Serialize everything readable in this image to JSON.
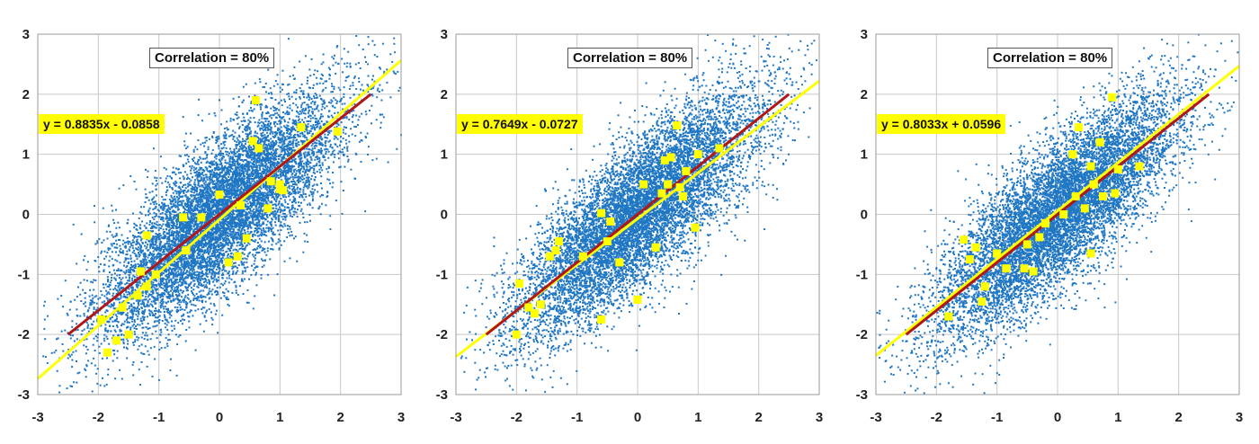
{
  "chart_data": [
    {
      "type": "scatter",
      "annotation": "Correlation = 80%",
      "equation": "y = 0.8835x - 0.0858",
      "xlim": [
        -3,
        3
      ],
      "ylim": [
        -3,
        3
      ],
      "xticks": [
        "-3",
        "-2",
        "-1",
        "0",
        "1",
        "2",
        "3"
      ],
      "yticks": [
        "-3",
        "-2",
        "-1",
        "0",
        "1",
        "2",
        "3"
      ],
      "grid": true,
      "cloud": {
        "n": 9000,
        "correlation": 0.8,
        "color": "#1f77c4"
      },
      "sample": {
        "color": "#ffff00",
        "points": [
          [
            -1.95,
            -1.75
          ],
          [
            -1.85,
            -2.3
          ],
          [
            -1.7,
            -2.1
          ],
          [
            -1.6,
            -1.55
          ],
          [
            -1.5,
            -2.0
          ],
          [
            -1.35,
            -1.35
          ],
          [
            -1.3,
            -0.95
          ],
          [
            -1.2,
            -1.2
          ],
          [
            -1.05,
            -1.0
          ],
          [
            -1.2,
            -0.35
          ],
          [
            -0.6,
            -0.05
          ],
          [
            -0.55,
            -0.6
          ],
          [
            -0.3,
            -0.05
          ],
          [
            0.0,
            0.33
          ],
          [
            0.15,
            -0.8
          ],
          [
            0.3,
            -0.7
          ],
          [
            0.35,
            0.15
          ],
          [
            0.45,
            -0.4
          ],
          [
            0.55,
            1.22
          ],
          [
            0.6,
            1.9
          ],
          [
            0.65,
            1.1
          ],
          [
            0.8,
            0.1
          ],
          [
            0.85,
            0.55
          ],
          [
            1.0,
            0.5
          ],
          [
            1.0,
            0.42
          ],
          [
            1.05,
            0.4
          ],
          [
            1.35,
            1.45
          ],
          [
            1.95,
            1.38
          ]
        ]
      },
      "lines": [
        {
          "slope": 0.8835,
          "intercept": -0.0858,
          "x": [
            -3.0,
            3.0
          ],
          "color": "#ffff00"
        },
        {
          "slope": 0.8,
          "intercept": 0.0,
          "x": [
            -2.5,
            2.5
          ],
          "color": "#b01818"
        }
      ]
    },
    {
      "type": "scatter",
      "annotation": "Correlation = 80%",
      "equation": "y = 0.7649x - 0.0727",
      "xlim": [
        -3,
        3
      ],
      "ylim": [
        -3,
        3
      ],
      "xticks": [
        "-3",
        "-2",
        "-1",
        "0",
        "1",
        "2",
        "3"
      ],
      "yticks": [
        "-3",
        "-2",
        "-1",
        "0",
        "1",
        "2",
        "3"
      ],
      "grid": true,
      "cloud": {
        "n": 9000,
        "correlation": 0.8,
        "color": "#1f77c4"
      },
      "sample": {
        "color": "#ffff00",
        "points": [
          [
            -2.0,
            -2.0
          ],
          [
            -1.95,
            -1.15
          ],
          [
            -1.8,
            -1.55
          ],
          [
            -1.7,
            -1.65
          ],
          [
            -1.6,
            -1.5
          ],
          [
            -1.45,
            -0.7
          ],
          [
            -1.35,
            -0.6
          ],
          [
            -1.3,
            -0.45
          ],
          [
            -0.9,
            -0.7
          ],
          [
            -0.6,
            0.02
          ],
          [
            -0.6,
            -1.75
          ],
          [
            -0.5,
            -0.45
          ],
          [
            -0.45,
            -0.12
          ],
          [
            -0.3,
            -0.8
          ],
          [
            0.0,
            -1.42
          ],
          [
            0.1,
            0.5
          ],
          [
            0.3,
            -0.55
          ],
          [
            0.4,
            0.35
          ],
          [
            0.45,
            0.9
          ],
          [
            0.5,
            0.5
          ],
          [
            0.55,
            0.95
          ],
          [
            0.65,
            1.48
          ],
          [
            0.7,
            0.45
          ],
          [
            0.75,
            0.3
          ],
          [
            0.8,
            0.72
          ],
          [
            0.95,
            -0.22
          ],
          [
            1.0,
            1.0
          ],
          [
            1.35,
            1.1
          ]
        ]
      },
      "lines": [
        {
          "slope": 0.7649,
          "intercept": -0.0727,
          "x": [
            -3.0,
            3.0
          ],
          "color": "#ffff00"
        },
        {
          "slope": 0.8,
          "intercept": 0.0,
          "x": [
            -2.5,
            2.5
          ],
          "color": "#b01818"
        }
      ]
    },
    {
      "type": "scatter",
      "annotation": "Correlation = 80%",
      "equation": "y = 0.8033x + 0.0596",
      "xlim": [
        -3,
        3
      ],
      "ylim": [
        -3,
        3
      ],
      "xticks": [
        "-3",
        "-2",
        "-1",
        "0",
        "1",
        "2",
        "3"
      ],
      "yticks": [
        "-3",
        "-2",
        "-1",
        "0",
        "1",
        "2",
        "3"
      ],
      "grid": true,
      "cloud": {
        "n": 9000,
        "correlation": 0.8,
        "color": "#1f77c4"
      },
      "sample": {
        "color": "#ffff00",
        "points": [
          [
            -1.8,
            -1.7
          ],
          [
            -1.55,
            -0.42
          ],
          [
            -1.45,
            -0.75
          ],
          [
            -1.35,
            -0.55
          ],
          [
            -1.25,
            -1.45
          ],
          [
            -1.2,
            -1.2
          ],
          [
            -1.0,
            -0.65
          ],
          [
            -0.85,
            -0.9
          ],
          [
            -0.55,
            -0.9
          ],
          [
            -0.5,
            -0.5
          ],
          [
            -0.4,
            -0.95
          ],
          [
            -0.3,
            -0.38
          ],
          [
            -0.2,
            -0.15
          ],
          [
            0.1,
            0.0
          ],
          [
            0.25,
            1.0
          ],
          [
            0.3,
            0.3
          ],
          [
            0.35,
            1.45
          ],
          [
            0.45,
            0.1
          ],
          [
            0.55,
            0.8
          ],
          [
            0.55,
            -0.65
          ],
          [
            0.6,
            0.5
          ],
          [
            0.7,
            1.2
          ],
          [
            0.75,
            0.3
          ],
          [
            0.9,
            1.95
          ],
          [
            0.95,
            0.35
          ],
          [
            1.0,
            0.75
          ],
          [
            1.35,
            0.8
          ]
        ]
      },
      "lines": [
        {
          "slope": 0.8033,
          "intercept": 0.0596,
          "x": [
            -3.0,
            3.0
          ],
          "color": "#ffff00"
        },
        {
          "slope": 0.8,
          "intercept": 0.0,
          "x": [
            -2.5,
            2.5
          ],
          "color": "#b01818"
        }
      ]
    }
  ]
}
